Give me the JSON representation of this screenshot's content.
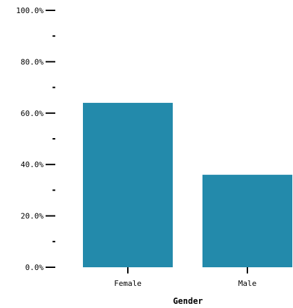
{
  "chart_data": {
    "type": "bar",
    "categories": [
      "Female",
      "Male"
    ],
    "values": [
      0.64,
      0.36
    ],
    "title": "",
    "xlabel": "Gender",
    "ylabel": "",
    "ylim": [
      0,
      1
    ],
    "y_tick_values": [
      0,
      0.2,
      0.4,
      0.6,
      0.8,
      1.0
    ],
    "y_tick_labels": [
      "0.0%",
      "20.0%",
      "40.0%",
      "60.0%",
      "80.0%",
      "100.0%"
    ],
    "y_minor_tick_values": [
      0.1,
      0.3,
      0.5,
      0.7,
      0.9
    ],
    "grid": false,
    "bar_color": "#238aab",
    "axis_color": "#000000"
  }
}
